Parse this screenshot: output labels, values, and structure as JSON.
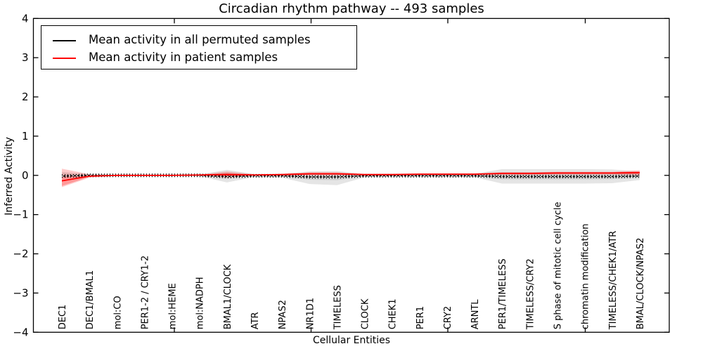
{
  "title": "Circadian rhythm pathway -- 493 samples",
  "axes": {
    "xlabel": "Cellular Entities",
    "ylabel": "Inferred Activity"
  },
  "legend": {
    "position": "upper left",
    "items": [
      {
        "label": "Mean activity in all permuted samples",
        "color": "#000000"
      },
      {
        "label": "Mean activity in patient samples",
        "color": "#ff0000"
      }
    ]
  },
  "chart_data": {
    "type": "line",
    "title": "Circadian rhythm pathway -- 493 samples",
    "xlabel": "Cellular Entities",
    "ylabel": "Inferred Activity",
    "ylim": [
      -4,
      4
    ],
    "yticks": [
      4,
      3,
      2,
      1,
      0,
      -1,
      -2,
      -3,
      -4
    ],
    "grid": false,
    "legend_position": "upper left",
    "categories": [
      "DEC1",
      "DEC1/BMAL1",
      "mol:CO",
      "PER1-2 / CRY1-2",
      "mol:HEME",
      "mol:NADPH",
      "BMAL1/CLOCK",
      "ATR",
      "NPAS2",
      "NR1D1",
      "TIMELESS",
      "CLOCK",
      "CHEK1",
      "PER1",
      "CRY2",
      "ARNTL",
      "PER1/TIMELESS",
      "TIMELESS/CRY2",
      "S phase of mitotic cell cycle",
      "chromatin modification",
      "TIMELESS/CHEK1/ATR",
      "BMAL/CLOCK/NPAS2"
    ],
    "series": [
      {
        "name": "Mean activity in all permuted samples",
        "color": "#000000",
        "style": "dashed-with-tick-markers",
        "values": [
          -0.02,
          0.0,
          0.0,
          0.0,
          0.0,
          0.0,
          -0.03,
          -0.01,
          -0.01,
          -0.04,
          -0.04,
          -0.01,
          -0.01,
          -0.01,
          -0.01,
          -0.01,
          -0.03,
          -0.03,
          -0.03,
          -0.03,
          -0.03,
          -0.02
        ]
      },
      {
        "name": "Mean activity in patient samples",
        "color": "#ff0000",
        "style": "solid",
        "values": [
          -0.14,
          -0.02,
          0.0,
          0.0,
          0.0,
          0.01,
          0.02,
          0.01,
          0.02,
          0.04,
          0.04,
          0.02,
          0.02,
          0.03,
          0.03,
          0.03,
          0.05,
          0.05,
          0.06,
          0.06,
          0.06,
          0.07
        ]
      }
    ],
    "bands": [
      {
        "name": "permuted-samples-spread-outer",
        "color": "#000000",
        "alpha": 0.1,
        "upper": [
          0.09,
          0.03,
          0.01,
          0.01,
          0.01,
          0.02,
          0.14,
          0.03,
          0.04,
          0.1,
          0.11,
          0.03,
          0.02,
          0.02,
          0.02,
          0.04,
          0.16,
          0.16,
          0.16,
          0.16,
          0.15,
          0.1
        ],
        "lower": [
          -0.07,
          -0.03,
          -0.01,
          -0.01,
          -0.01,
          -0.02,
          -0.18,
          -0.04,
          -0.06,
          -0.22,
          -0.25,
          -0.05,
          -0.03,
          -0.03,
          -0.03,
          -0.05,
          -0.21,
          -0.21,
          -0.21,
          -0.21,
          -0.2,
          -0.12
        ]
      },
      {
        "name": "permuted-samples-spread-inner",
        "color": "#000000",
        "alpha": 0.08,
        "upper": [
          0.045,
          0.015,
          0.005,
          0.005,
          0.005,
          0.01,
          0.07,
          0.015,
          0.02,
          0.05,
          0.055,
          0.015,
          0.01,
          0.01,
          0.01,
          0.02,
          0.08,
          0.08,
          0.08,
          0.08,
          0.075,
          0.05
        ],
        "lower": [
          -0.035,
          -0.015,
          -0.005,
          -0.005,
          -0.005,
          -0.01,
          -0.09,
          -0.02,
          -0.03,
          -0.11,
          -0.125,
          -0.025,
          -0.015,
          -0.015,
          -0.015,
          -0.025,
          -0.105,
          -0.105,
          -0.105,
          -0.105,
          -0.1,
          -0.06
        ]
      },
      {
        "name": "patient-samples-spread-outer",
        "color": "#ff0000",
        "alpha": 0.2,
        "upper": [
          0.17,
          0.03,
          0.01,
          0.01,
          0.01,
          0.02,
          0.1,
          0.03,
          0.04,
          0.08,
          0.08,
          0.04,
          0.04,
          0.05,
          0.05,
          0.05,
          0.08,
          0.08,
          0.09,
          0.09,
          0.09,
          0.13
        ],
        "lower": [
          -0.3,
          -0.06,
          -0.01,
          -0.01,
          -0.01,
          -0.01,
          -0.06,
          -0.02,
          -0.01,
          0.0,
          0.0,
          0.0,
          0.0,
          0.0,
          0.0,
          0.0,
          0.01,
          0.01,
          0.02,
          0.02,
          0.02,
          0.0
        ]
      },
      {
        "name": "patient-samples-spread-inner",
        "color": "#ff0000",
        "alpha": 0.25,
        "upper": [
          0.0,
          0.0,
          0.005,
          0.005,
          0.005,
          0.015,
          0.06,
          0.02,
          0.03,
          0.06,
          0.06,
          0.03,
          0.03,
          0.04,
          0.04,
          0.04,
          0.065,
          0.065,
          0.075,
          0.075,
          0.075,
          0.1
        ],
        "lower": [
          -0.27,
          -0.04,
          -0.005,
          -0.005,
          -0.005,
          0.0,
          -0.02,
          0.0,
          0.01,
          0.02,
          0.02,
          0.01,
          0.01,
          0.015,
          0.015,
          0.015,
          0.03,
          0.03,
          0.04,
          0.04,
          0.04,
          0.03
        ]
      }
    ]
  }
}
